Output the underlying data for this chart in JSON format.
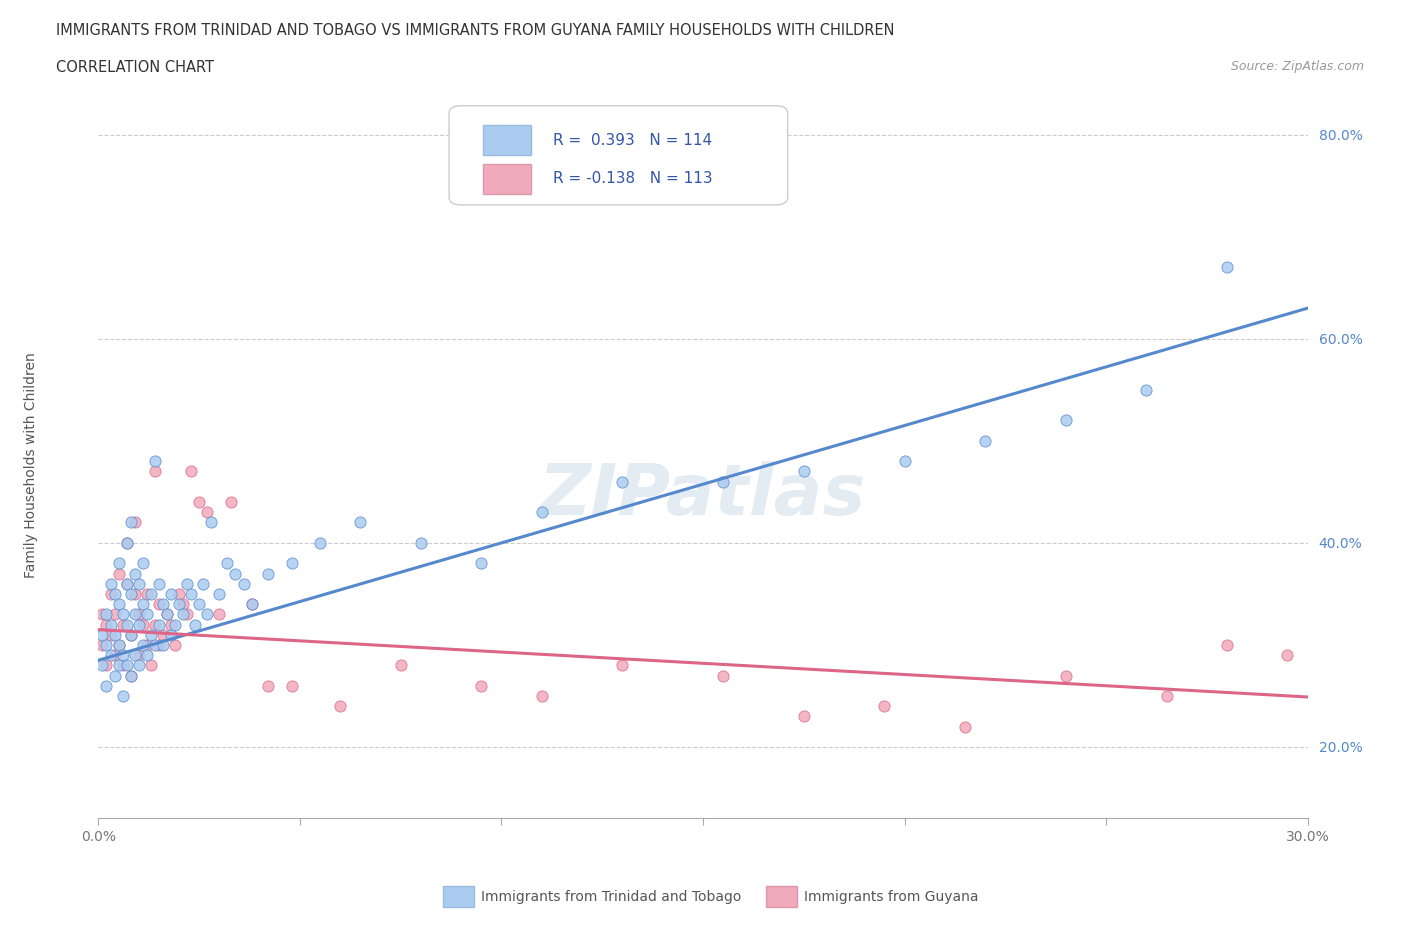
{
  "title": "IMMIGRANTS FROM TRINIDAD AND TOBAGO VS IMMIGRANTS FROM GUYANA FAMILY HOUSEHOLDS WITH CHILDREN",
  "subtitle": "CORRELATION CHART",
  "source": "Source: ZipAtlas.com",
  "ylabel": "Family Households with Children",
  "xlim": [
    0.0,
    0.3
  ],
  "ylim": [
    0.13,
    0.85
  ],
  "xticks": [
    0.0,
    0.05,
    0.1,
    0.15,
    0.2,
    0.25,
    0.3
  ],
  "yticks": [
    0.2,
    0.4,
    0.6,
    0.8
  ],
  "legend_label1": "Immigrants from Trinidad and Tobago",
  "legend_label2": "Immigrants from Guyana",
  "blue_color": "#aaccf0",
  "pink_color": "#f0aabb",
  "line_blue": "#5588cc",
  "line_pink": "#dd6688",
  "watermark": "ZIPatlas",
  "watermark_color": "#ccdde8",
  "background_color": "#ffffff",
  "grid_color": "#cccccc",
  "title_color": "#333333",
  "ytick_color": "#5588cc",
  "xtick_color": "#777777",
  "ylabel_color": "#555555",
  "source_color": "#999999",
  "legend_text_color": "#3355aa",
  "legend_border": "#dddddd",
  "bottom_legend_color": "#555555",
  "blue_line_intercept": 0.285,
  "blue_line_slope": 1.15,
  "pink_line_intercept": 0.315,
  "pink_line_slope": -0.22,
  "scatter_blue_x": [
    0.001,
    0.001,
    0.002,
    0.002,
    0.002,
    0.003,
    0.003,
    0.003,
    0.004,
    0.004,
    0.004,
    0.005,
    0.005,
    0.005,
    0.005,
    0.006,
    0.006,
    0.006,
    0.007,
    0.007,
    0.007,
    0.007,
    0.008,
    0.008,
    0.008,
    0.008,
    0.009,
    0.009,
    0.009,
    0.01,
    0.01,
    0.01,
    0.011,
    0.011,
    0.011,
    0.012,
    0.012,
    0.013,
    0.013,
    0.014,
    0.014,
    0.015,
    0.015,
    0.016,
    0.016,
    0.017,
    0.018,
    0.018,
    0.019,
    0.02,
    0.021,
    0.022,
    0.023,
    0.024,
    0.025,
    0.026,
    0.027,
    0.028,
    0.03,
    0.032,
    0.034,
    0.036,
    0.038,
    0.042,
    0.048,
    0.055,
    0.065,
    0.08,
    0.095,
    0.11,
    0.13,
    0.155,
    0.175,
    0.2,
    0.22,
    0.24,
    0.26,
    0.28
  ],
  "scatter_blue_y": [
    0.28,
    0.31,
    0.26,
    0.3,
    0.33,
    0.29,
    0.32,
    0.36,
    0.27,
    0.31,
    0.35,
    0.28,
    0.3,
    0.34,
    0.38,
    0.25,
    0.29,
    0.33,
    0.28,
    0.32,
    0.36,
    0.4,
    0.27,
    0.31,
    0.35,
    0.42,
    0.29,
    0.33,
    0.37,
    0.28,
    0.32,
    0.36,
    0.3,
    0.34,
    0.38,
    0.29,
    0.33,
    0.31,
    0.35,
    0.3,
    0.48,
    0.32,
    0.36,
    0.3,
    0.34,
    0.33,
    0.31,
    0.35,
    0.32,
    0.34,
    0.33,
    0.36,
    0.35,
    0.32,
    0.34,
    0.36,
    0.33,
    0.42,
    0.35,
    0.38,
    0.37,
    0.36,
    0.34,
    0.37,
    0.38,
    0.4,
    0.42,
    0.4,
    0.38,
    0.43,
    0.46,
    0.46,
    0.47,
    0.48,
    0.5,
    0.52,
    0.55,
    0.67
  ],
  "scatter_pink_x": [
    0.001,
    0.001,
    0.002,
    0.002,
    0.003,
    0.003,
    0.004,
    0.004,
    0.005,
    0.005,
    0.006,
    0.006,
    0.007,
    0.007,
    0.008,
    0.008,
    0.009,
    0.009,
    0.01,
    0.01,
    0.011,
    0.012,
    0.012,
    0.013,
    0.014,
    0.014,
    0.015,
    0.015,
    0.016,
    0.017,
    0.018,
    0.019,
    0.02,
    0.021,
    0.022,
    0.023,
    0.025,
    0.027,
    0.03,
    0.033,
    0.038,
    0.042,
    0.048,
    0.06,
    0.075,
    0.095,
    0.11,
    0.13,
    0.155,
    0.175,
    0.195,
    0.215,
    0.24,
    0.265,
    0.28,
    0.295
  ],
  "scatter_pink_y": [
    0.3,
    0.33,
    0.28,
    0.32,
    0.31,
    0.35,
    0.29,
    0.33,
    0.3,
    0.37,
    0.28,
    0.32,
    0.36,
    0.4,
    0.27,
    0.31,
    0.35,
    0.42,
    0.29,
    0.33,
    0.32,
    0.3,
    0.35,
    0.28,
    0.32,
    0.47,
    0.3,
    0.34,
    0.31,
    0.33,
    0.32,
    0.3,
    0.35,
    0.34,
    0.33,
    0.47,
    0.44,
    0.43,
    0.33,
    0.44,
    0.34,
    0.26,
    0.26,
    0.24,
    0.28,
    0.26,
    0.25,
    0.28,
    0.27,
    0.23,
    0.24,
    0.22,
    0.27,
    0.25,
    0.3,
    0.29
  ]
}
